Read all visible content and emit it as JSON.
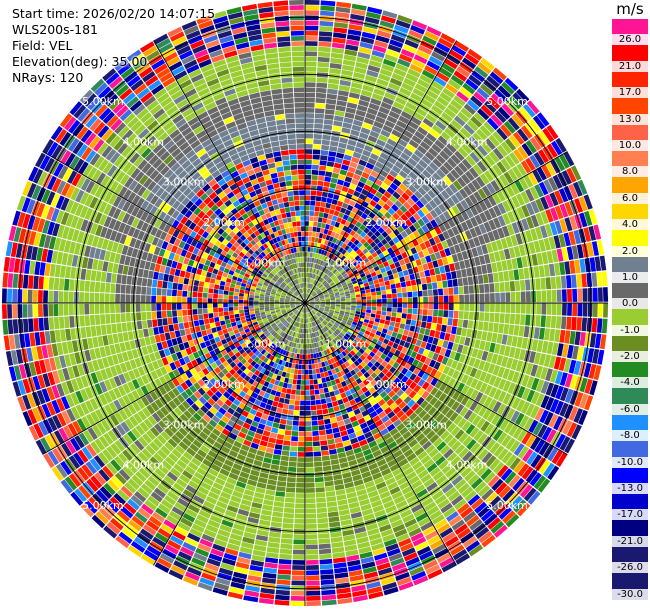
{
  "header": {
    "start_time": "Start time: 2026/02/20 14:07:15",
    "instrument": "WLS200s-181",
    "field": "Field: VEL",
    "elevation": "Elevation(deg): 35.00",
    "nrays": "NRays: 120"
  },
  "colorbar": {
    "unit": "m/s",
    "entries": [
      {
        "label": "26.0",
        "color": "#ff1493"
      },
      {
        "label": "21.0",
        "color": "#ff0000"
      },
      {
        "label": "17.0",
        "color": "#ff2400"
      },
      {
        "label": "13.0",
        "color": "#ff4500"
      },
      {
        "label": "10.0",
        "color": "#ff6347"
      },
      {
        "label": "8.0",
        "color": "#ff7f50"
      },
      {
        "label": "6.0",
        "color": "#ffa500"
      },
      {
        "label": "4.0",
        "color": "#ffd700"
      },
      {
        "label": "2.0",
        "color": "#ffff00"
      },
      {
        "label": "1.0",
        "color": "#708090"
      },
      {
        "label": "0.0",
        "color": "#696969"
      },
      {
        "label": "-1.0",
        "color": "#9acd32"
      },
      {
        "label": "-2.0",
        "color": "#6b8e23"
      },
      {
        "label": "-4.0",
        "color": "#228b22"
      },
      {
        "label": "-6.0",
        "color": "#2e8b57"
      },
      {
        "label": "-8.0",
        "color": "#1e90ff"
      },
      {
        "label": "-10.0",
        "color": "#4169e1"
      },
      {
        "label": "-13.0",
        "color": "#0000ff"
      },
      {
        "label": "-17.0",
        "color": "#0000cd"
      },
      {
        "label": "-21.0",
        "color": "#000080"
      },
      {
        "label": "-26.0",
        "color": "#191970"
      },
      {
        "label": "-30.0",
        "color": "#191970"
      }
    ]
  },
  "chart_data": {
    "type": "heatmap",
    "projection": "polar-ppi",
    "field": "VEL",
    "elevation_deg": 35.0,
    "nrays": 120,
    "max_range_km": 5.3,
    "range_rings_km": [
      1.0,
      2.0,
      3.0,
      4.0,
      5.0
    ],
    "range_ring_labels": [
      "1.00km",
      "2.00km",
      "3.00km",
      "4.00km",
      "5.00km"
    ],
    "ring_label_azimuths_deg": [
      45,
      135,
      225,
      315
    ],
    "spoke_azimuths_deg": [
      0,
      30,
      60,
      90,
      120,
      150,
      180,
      210,
      240,
      270,
      300,
      330
    ],
    "value_range": [
      -30,
      30
    ],
    "velocity_zones_by_range_km": [
      {
        "from": 0.0,
        "to": 0.9,
        "values": [
          -2.0,
          2.0
        ],
        "noise": 0.55
      },
      {
        "from": 0.9,
        "to": 2.7,
        "values": [
          -26.0,
          26.0
        ],
        "noise": 1.0
      },
      {
        "from": 2.7,
        "to": 3.3,
        "north": 2.0,
        "south": -2.0,
        "noise": 0.15
      },
      {
        "from": 3.3,
        "to": 3.8,
        "north": 0.5,
        "south": -1.0,
        "noise": 0.15
      },
      {
        "from": 3.8,
        "to": 4.5,
        "north": 0.0,
        "south": -1.0,
        "noise": 0.3
      },
      {
        "from": 4.5,
        "to": 5.3,
        "values": [
          -30.0,
          30.0
        ],
        "noise": 1.0
      }
    ]
  }
}
